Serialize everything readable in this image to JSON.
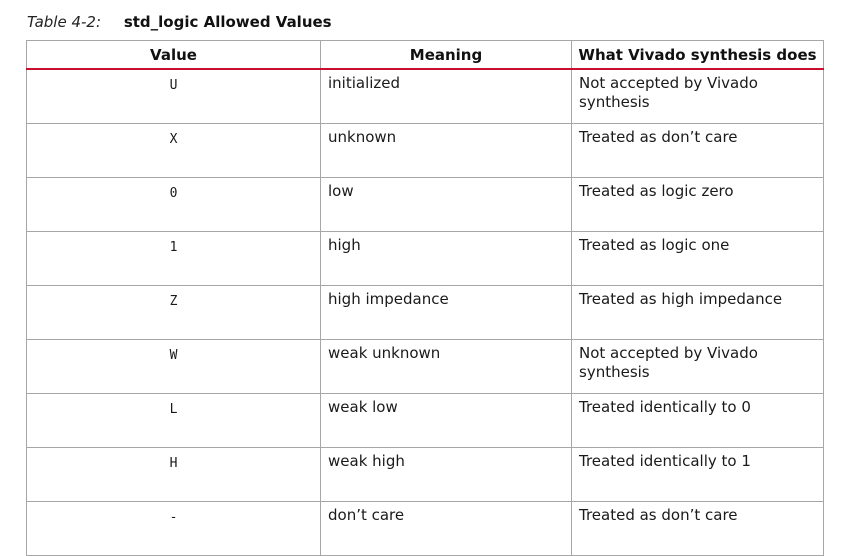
{
  "caption": {
    "label": "Table 4-2:",
    "title": "std_logic Allowed Values"
  },
  "table": {
    "headers": [
      "Value",
      "Meaning",
      "What Vivado synthesis does"
    ],
    "rows": [
      {
        "value": "U",
        "meaning": "initialized",
        "action": "Not accepted by Vivado synthesis"
      },
      {
        "value": "X",
        "meaning": "unknown",
        "action": "Treated as don’t care"
      },
      {
        "value": "0",
        "meaning": "low",
        "action": "Treated as logic zero"
      },
      {
        "value": "1",
        "meaning": "high",
        "action": "Treated as logic one"
      },
      {
        "value": "Z",
        "meaning": "high impedance",
        "action": "Treated as high impedance"
      },
      {
        "value": "W",
        "meaning": "weak unknown",
        "action": "Not accepted by Vivado synthesis"
      },
      {
        "value": "L",
        "meaning": "weak low",
        "action": "Treated identically to 0"
      },
      {
        "value": "H",
        "meaning": "weak high",
        "action": "Treated identically to 1"
      },
      {
        "value": "-",
        "meaning": "don’t care",
        "action": "Treated as don’t care"
      }
    ]
  },
  "colors": {
    "header_rule": "#c8102e",
    "border": "#a6a6a6"
  }
}
